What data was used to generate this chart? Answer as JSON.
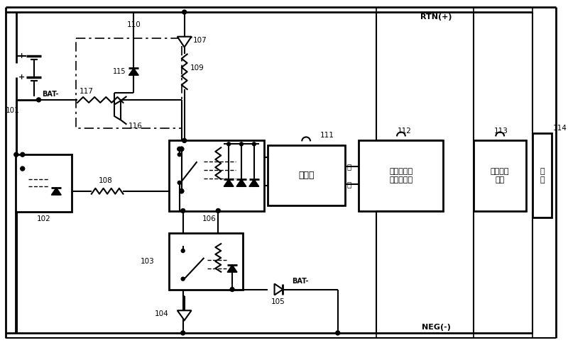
{
  "bg": "#ffffff",
  "lc": "#000000",
  "labels": {
    "RTN": "RTN(+)",
    "NEG": "NEG(-)",
    "n101": "101",
    "n102": "102",
    "n103": "103",
    "n104": "104",
    "n105": "105",
    "n106": "106",
    "n107": "107",
    "n108": "108",
    "n109": "109",
    "n110": "110",
    "n111": "111",
    "n112": "112",
    "n113": "113",
    "n114": "114",
    "n115": "115",
    "n116": "116",
    "n117": "117",
    "bat": "BAT-",
    "pos": "正",
    "neg": "负",
    "ctrl": "控制器",
    "antipwr": "控制器电源\n防反接模块",
    "rect": "整流电源\n模块",
    "load": "负\n载"
  }
}
